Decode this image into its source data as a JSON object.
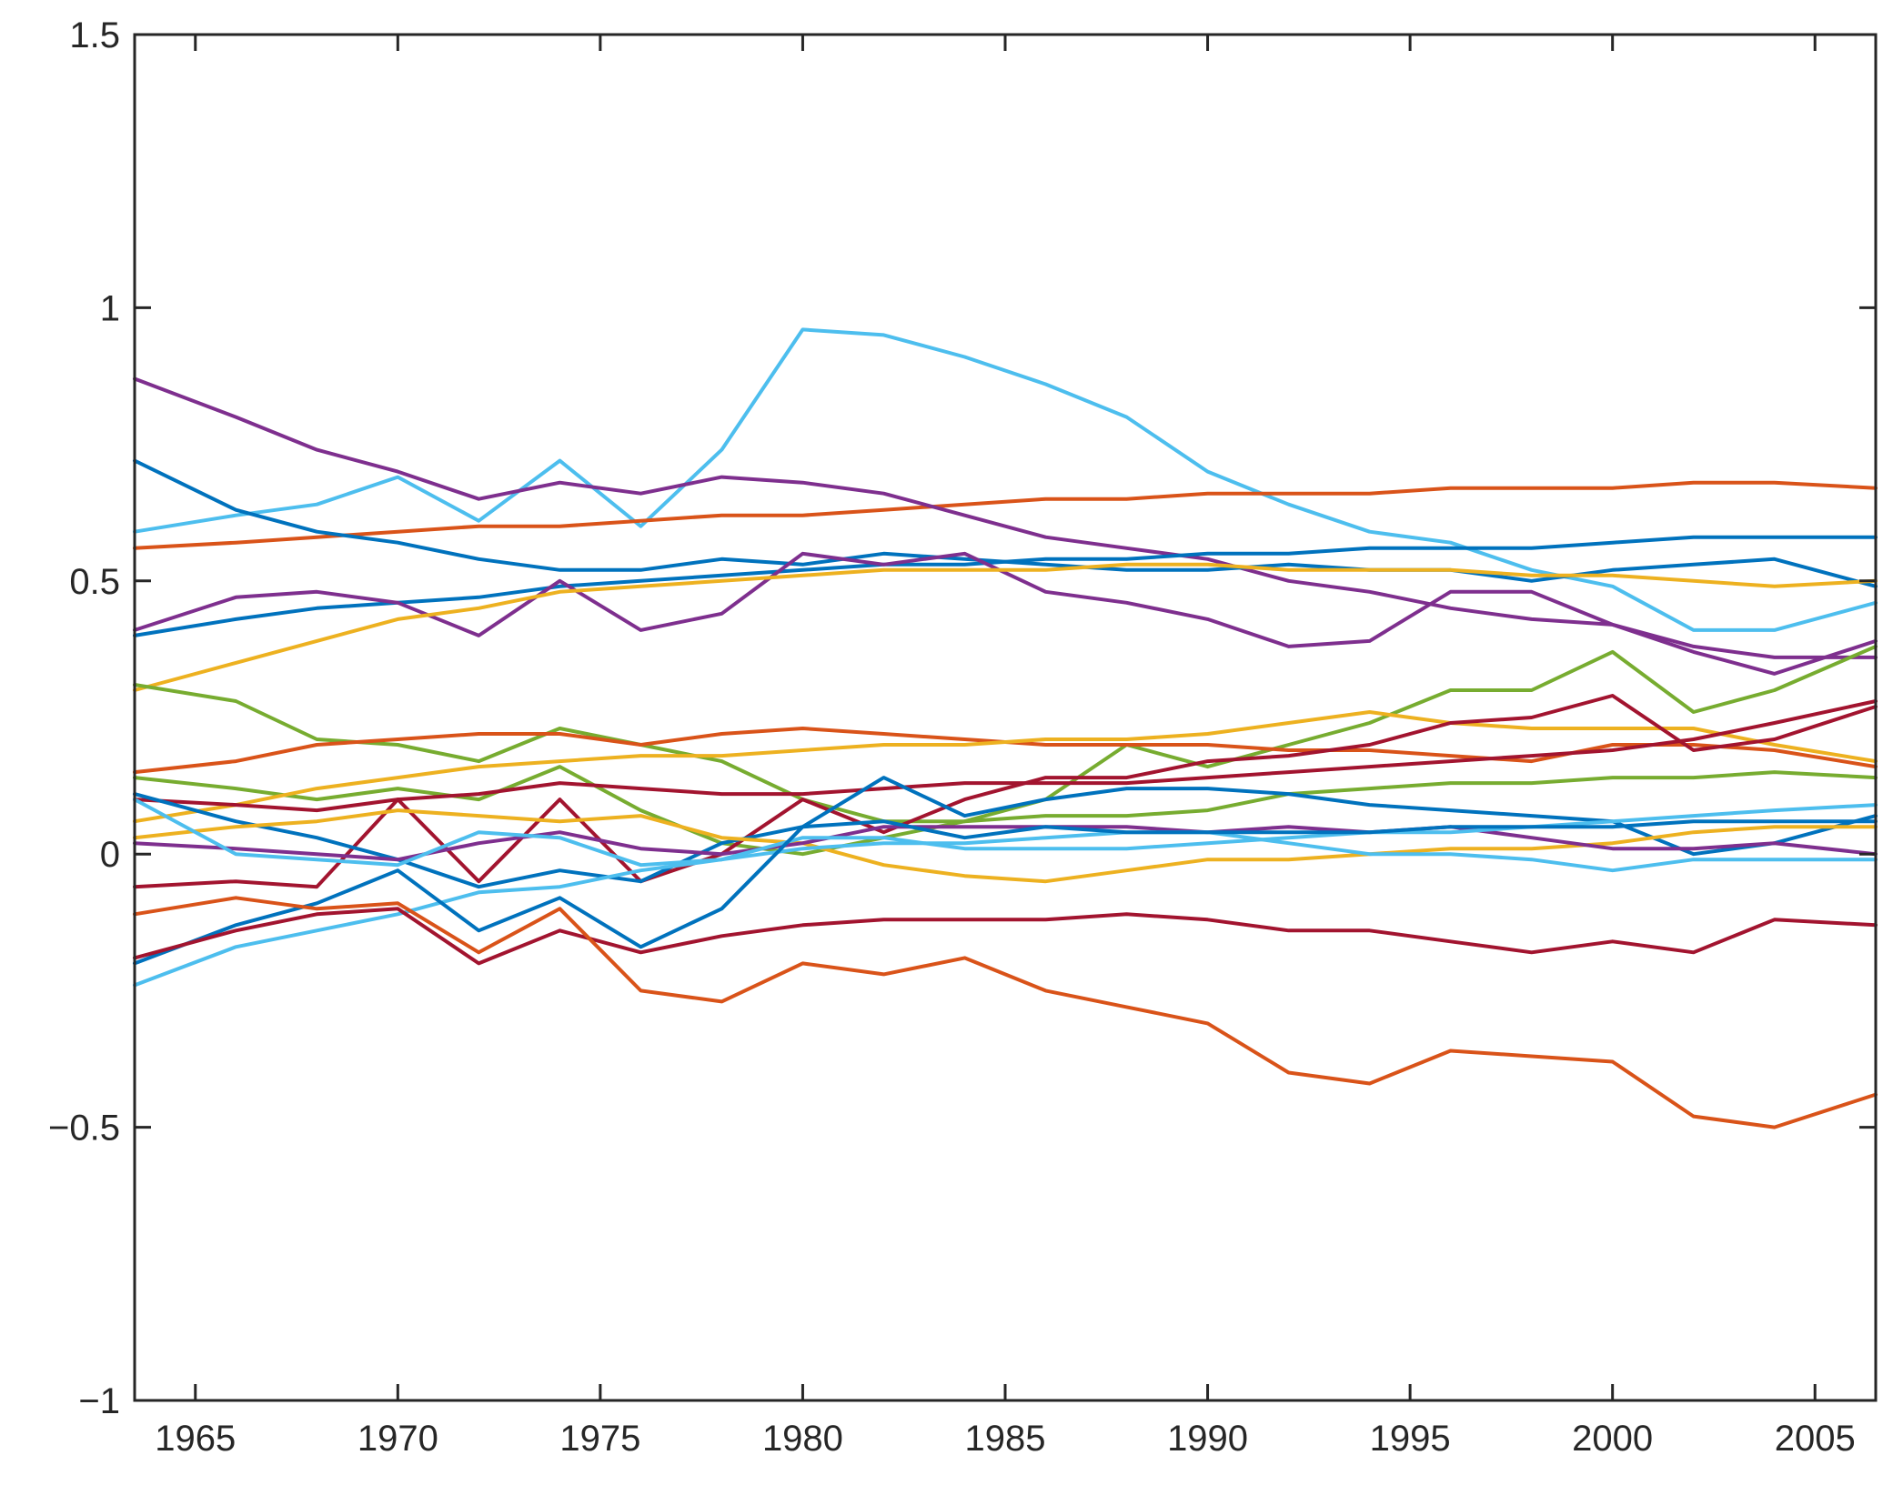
{
  "chart_data": {
    "type": "line",
    "title": "",
    "xlabel": "",
    "ylabel": "",
    "xlim": [
      1963.5,
      2006.5
    ],
    "ylim": [
      -1,
      1.5
    ],
    "x_ticks": [
      1965,
      1970,
      1975,
      1980,
      1985,
      1990,
      1995,
      2000,
      2005
    ],
    "x_tick_labels": [
      "1965",
      "1970",
      "1975",
      "1980",
      "1985",
      "1990",
      "1995",
      "2000",
      "2005"
    ],
    "y_ticks": [
      -1,
      -0.5,
      0,
      0.5,
      1,
      1.5
    ],
    "y_tick_labels": [
      "−1",
      "−0.5",
      "0",
      "0.5",
      "1",
      "1.5"
    ],
    "grid": false,
    "legend": "none",
    "x": [
      1963.5,
      1966,
      1968,
      1970,
      1972,
      1974,
      1976,
      1978,
      1980,
      1982,
      1984,
      1986,
      1988,
      1990,
      1992,
      1994,
      1996,
      1998,
      2000,
      2002,
      2004,
      2006.5
    ],
    "series": [
      {
        "color": "#4DBEEE",
        "values": [
          0.59,
          0.62,
          0.64,
          0.69,
          0.61,
          0.72,
          0.6,
          0.74,
          0.96,
          0.95,
          0.91,
          0.86,
          0.8,
          0.7,
          0.64,
          0.59,
          0.57,
          0.52,
          0.49,
          0.41,
          0.41,
          0.46
        ]
      },
      {
        "color": "#D95319",
        "values": [
          0.56,
          0.57,
          0.58,
          0.59,
          0.6,
          0.6,
          0.61,
          0.62,
          0.62,
          0.63,
          0.64,
          0.65,
          0.65,
          0.66,
          0.66,
          0.66,
          0.67,
          0.67,
          0.67,
          0.68,
          0.68,
          0.67
        ]
      },
      {
        "color": "#7E2F8E",
        "values": [
          0.87,
          0.8,
          0.74,
          0.7,
          0.65,
          0.68,
          0.66,
          0.69,
          0.68,
          0.66,
          0.62,
          0.58,
          0.56,
          0.54,
          0.5,
          0.48,
          0.45,
          0.43,
          0.42,
          0.38,
          0.36,
          0.36
        ]
      },
      {
        "color": "#0072BD",
        "values": [
          0.72,
          0.63,
          0.59,
          0.57,
          0.54,
          0.52,
          0.52,
          0.54,
          0.53,
          0.55,
          0.54,
          0.53,
          0.52,
          0.52,
          0.53,
          0.52,
          0.52,
          0.5,
          0.52,
          0.53,
          0.54,
          0.49
        ]
      },
      {
        "color": "#0072BD",
        "values": [
          0.4,
          0.43,
          0.45,
          0.46,
          0.47,
          0.49,
          0.5,
          0.51,
          0.52,
          0.53,
          0.53,
          0.54,
          0.54,
          0.55,
          0.55,
          0.56,
          0.56,
          0.56,
          0.57,
          0.58,
          0.58,
          0.58
        ]
      },
      {
        "color": "#7E2F8E",
        "values": [
          0.41,
          0.47,
          0.48,
          0.46,
          0.4,
          0.5,
          0.41,
          0.44,
          0.55,
          0.53,
          0.55,
          0.48,
          0.46,
          0.43,
          0.38,
          0.39,
          0.48,
          0.48,
          0.42,
          0.37,
          0.33,
          0.39
        ]
      },
      {
        "color": "#EDB120",
        "values": [
          0.3,
          0.35,
          0.39,
          0.43,
          0.45,
          0.48,
          0.49,
          0.5,
          0.51,
          0.52,
          0.52,
          0.52,
          0.53,
          0.53,
          0.52,
          0.52,
          0.52,
          0.51,
          0.51,
          0.5,
          0.49,
          0.5
        ]
      },
      {
        "color": "#77AC30",
        "values": [
          0.31,
          0.28,
          0.21,
          0.2,
          0.17,
          0.23,
          0.2,
          0.17,
          0.1,
          0.06,
          0.06,
          0.07,
          0.07,
          0.08,
          0.11,
          0.12,
          0.13,
          0.13,
          0.14,
          0.14,
          0.15,
          0.14
        ]
      },
      {
        "color": "#77AC30",
        "values": [
          0.14,
          0.12,
          0.1,
          0.12,
          0.1,
          0.16,
          0.08,
          0.02,
          0.0,
          0.03,
          0.06,
          0.1,
          0.2,
          0.16,
          0.2,
          0.24,
          0.3,
          0.3,
          0.37,
          0.26,
          0.3,
          0.38
        ]
      },
      {
        "color": "#D95319",
        "values": [
          0.15,
          0.17,
          0.2,
          0.21,
          0.22,
          0.22,
          0.2,
          0.22,
          0.23,
          0.22,
          0.21,
          0.2,
          0.2,
          0.2,
          0.19,
          0.19,
          0.18,
          0.17,
          0.2,
          0.2,
          0.19,
          0.16
        ]
      },
      {
        "color": "#EDB120",
        "values": [
          0.06,
          0.09,
          0.12,
          0.14,
          0.16,
          0.17,
          0.18,
          0.18,
          0.19,
          0.2,
          0.2,
          0.21,
          0.21,
          0.22,
          0.24,
          0.26,
          0.24,
          0.23,
          0.23,
          0.23,
          0.2,
          0.17
        ]
      },
      {
        "color": "#A2142F",
        "values": [
          0.1,
          0.09,
          0.08,
          0.1,
          0.11,
          0.13,
          0.12,
          0.11,
          0.11,
          0.12,
          0.13,
          0.13,
          0.13,
          0.14,
          0.15,
          0.16,
          0.17,
          0.18,
          0.19,
          0.21,
          0.24,
          0.28
        ]
      },
      {
        "color": "#A2142F",
        "values": [
          -0.06,
          -0.05,
          -0.06,
          0.1,
          -0.05,
          0.1,
          -0.05,
          0.0,
          0.1,
          0.04,
          0.1,
          0.14,
          0.14,
          0.17,
          0.18,
          0.2,
          0.24,
          0.25,
          0.29,
          0.19,
          0.21,
          0.27
        ]
      },
      {
        "color": "#0072BD",
        "values": [
          0.11,
          0.06,
          0.03,
          -0.01,
          -0.06,
          -0.03,
          -0.05,
          0.02,
          0.05,
          0.14,
          0.07,
          0.1,
          0.12,
          0.12,
          0.11,
          0.09,
          0.08,
          0.07,
          0.06,
          0.0,
          0.02,
          0.07
        ]
      },
      {
        "color": "#EDB120",
        "values": [
          0.03,
          0.05,
          0.06,
          0.08,
          0.07,
          0.06,
          0.07,
          0.03,
          0.02,
          -0.02,
          -0.04,
          -0.05,
          -0.03,
          -0.01,
          -0.01,
          0.0,
          0.01,
          0.01,
          0.02,
          0.04,
          0.05,
          0.05
        ]
      },
      {
        "color": "#7E2F8E",
        "values": [
          0.02,
          0.01,
          0.0,
          -0.01,
          0.02,
          0.04,
          0.01,
          0.0,
          0.02,
          0.05,
          0.05,
          0.05,
          0.05,
          0.04,
          0.05,
          0.04,
          0.05,
          0.03,
          0.01,
          0.01,
          0.02,
          0.0
        ]
      },
      {
        "color": "#4DBEEE",
        "values": [
          0.1,
          0.0,
          -0.01,
          -0.02,
          0.04,
          0.03,
          -0.02,
          -0.01,
          0.03,
          0.03,
          0.01,
          0.01,
          0.01,
          0.02,
          0.03,
          0.04,
          0.04,
          0.05,
          0.06,
          0.07,
          0.08,
          0.09
        ]
      },
      {
        "color": "#4DBEEE",
        "values": [
          -0.24,
          -0.17,
          -0.14,
          -0.11,
          -0.07,
          -0.06,
          -0.03,
          -0.01,
          0.01,
          0.02,
          0.02,
          0.03,
          0.04,
          0.04,
          0.02,
          0.0,
          0.0,
          -0.01,
          -0.03,
          -0.01,
          -0.01,
          -0.01
        ]
      },
      {
        "color": "#0072BD",
        "values": [
          -0.2,
          -0.13,
          -0.09,
          -0.03,
          -0.14,
          -0.08,
          -0.17,
          -0.1,
          0.05,
          0.06,
          0.03,
          0.05,
          0.04,
          0.04,
          0.04,
          0.04,
          0.05,
          0.05,
          0.05,
          0.06,
          0.06,
          0.06
        ]
      },
      {
        "color": "#A2142F",
        "values": [
          -0.19,
          -0.14,
          -0.11,
          -0.1,
          -0.2,
          -0.14,
          -0.18,
          -0.15,
          -0.13,
          -0.12,
          -0.12,
          -0.12,
          -0.11,
          -0.12,
          -0.14,
          -0.14,
          -0.16,
          -0.18,
          -0.16,
          -0.18,
          -0.12,
          -0.13
        ]
      },
      {
        "color": "#D95319",
        "values": [
          -0.11,
          -0.08,
          -0.1,
          -0.09,
          -0.18,
          -0.1,
          -0.25,
          -0.27,
          -0.2,
          -0.22,
          -0.19,
          -0.25,
          -0.28,
          -0.31,
          -0.4,
          -0.42,
          -0.36,
          -0.37,
          -0.38,
          -0.48,
          -0.5,
          -0.44
        ]
      }
    ]
  }
}
